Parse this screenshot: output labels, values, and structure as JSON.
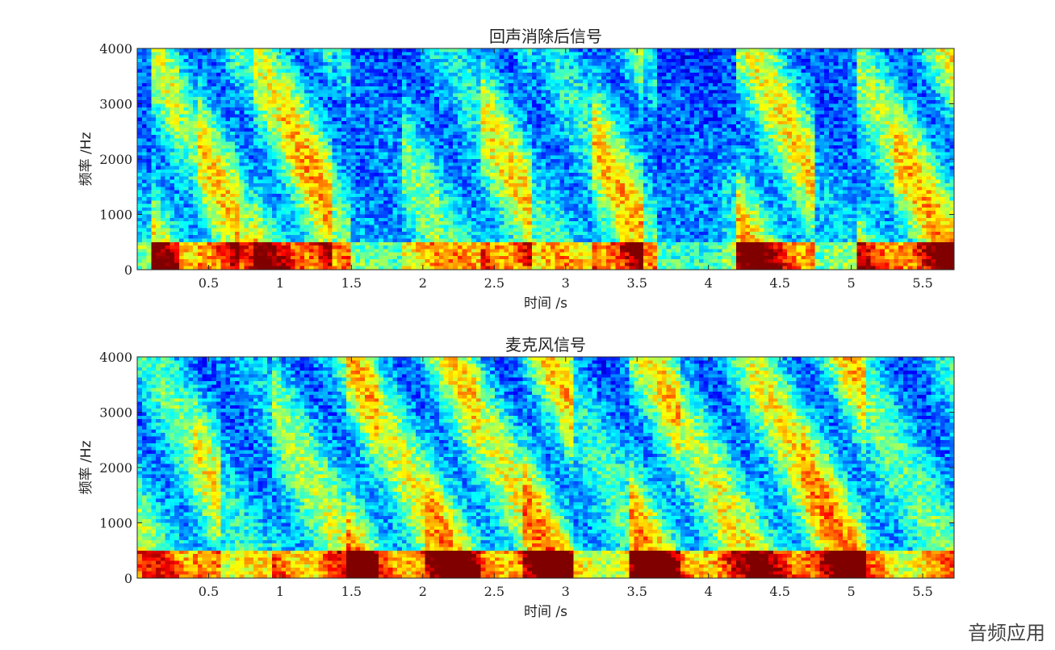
{
  "chart_data": [
    {
      "type": "heatmap",
      "title": "回声消除后信号",
      "xlabel": "时间 /s",
      "ylabel": "频率 /Hz",
      "xlim": [
        0,
        5.72
      ],
      "ylim": [
        0,
        4000
      ],
      "x_ticks": [
        "0.5",
        "1",
        "1.5",
        "2",
        "2.5",
        "3",
        "3.5",
        "4",
        "4.5",
        "5",
        "5.5"
      ],
      "y_ticks": [
        "0",
        "1000",
        "2000",
        "3000",
        "4000"
      ],
      "colormap": "jet",
      "energy_segments": [
        [
          0.0,
          0.1,
          0.15
        ],
        [
          0.1,
          0.3,
          0.75
        ],
        [
          0.3,
          0.42,
          0.55
        ],
        [
          0.42,
          0.72,
          0.8
        ],
        [
          0.72,
          0.8,
          0.55
        ],
        [
          0.8,
          1.0,
          0.78
        ],
        [
          1.0,
          1.35,
          0.9
        ],
        [
          1.35,
          1.48,
          0.45
        ],
        [
          1.48,
          1.85,
          0.1
        ],
        [
          1.85,
          2.1,
          0.5
        ],
        [
          2.1,
          2.4,
          0.4
        ],
        [
          2.4,
          2.75,
          0.78
        ],
        [
          2.75,
          2.92,
          0.35
        ],
        [
          2.92,
          3.2,
          0.4
        ],
        [
          3.2,
          3.55,
          0.85
        ],
        [
          3.55,
          3.65,
          0.4
        ],
        [
          3.65,
          4.1,
          0.05
        ],
        [
          4.1,
          4.2,
          0.2
        ],
        [
          4.2,
          4.75,
          0.8
        ],
        [
          4.75,
          5.05,
          0.15
        ],
        [
          5.05,
          5.3,
          0.65
        ],
        [
          5.3,
          5.72,
          0.85
        ]
      ]
    },
    {
      "type": "heatmap",
      "title": "麦克风信号",
      "xlabel": "时间 /s",
      "ylabel": "频率 /Hz",
      "xlim": [
        0,
        5.72
      ],
      "ylim": [
        0,
        4000
      ],
      "x_ticks": [
        "0.5",
        "1",
        "1.5",
        "2",
        "2.5",
        "3",
        "3.5",
        "4",
        "4.5",
        "5",
        "5.5"
      ],
      "y_ticks": [
        "0",
        "1000",
        "2000",
        "3000",
        "4000"
      ],
      "colormap": "jet",
      "energy_segments": [
        [
          0.0,
          0.4,
          0.55
        ],
        [
          0.4,
          0.6,
          0.75
        ],
        [
          0.6,
          0.95,
          0.3
        ],
        [
          0.95,
          1.45,
          0.6
        ],
        [
          1.45,
          1.7,
          0.95
        ],
        [
          1.7,
          2.0,
          0.7
        ],
        [
          2.0,
          2.4,
          0.9
        ],
        [
          2.4,
          2.7,
          0.7
        ],
        [
          2.7,
          3.05,
          0.95
        ],
        [
          3.05,
          3.45,
          0.4
        ],
        [
          3.45,
          3.8,
          0.9
        ],
        [
          3.8,
          4.05,
          0.65
        ],
        [
          4.05,
          4.3,
          0.7
        ],
        [
          4.3,
          4.65,
          0.8
        ],
        [
          4.65,
          5.1,
          0.95
        ],
        [
          5.1,
          5.3,
          0.55
        ],
        [
          5.3,
          5.72,
          0.45
        ]
      ]
    }
  ],
  "watermark": "音频应用"
}
